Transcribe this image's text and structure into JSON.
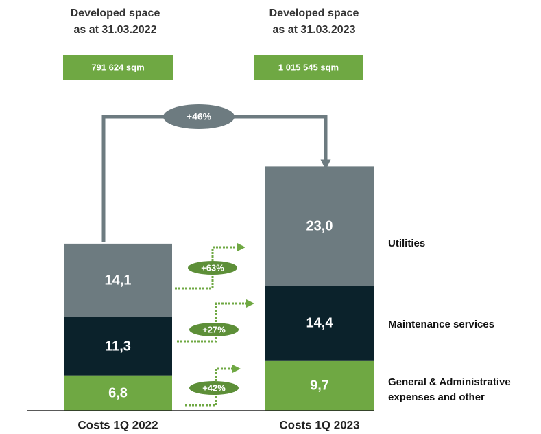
{
  "chart_data": {
    "type": "bar",
    "stacked": true,
    "headers": [
      {
        "lines": [
          "Developed space",
          "as at 31.03.2022"
        ],
        "area": "791 624 sqm"
      },
      {
        "lines": [
          "Developed space",
          "as at 31.03.2023"
        ],
        "area": "1 015 545 sqm"
      }
    ],
    "total_change": "+46%",
    "categories": [
      "Costs 1Q 2022",
      "Costs 1Q 2023"
    ],
    "series": [
      {
        "name": "General & Administrative expenses and other",
        "color": "#6fa843",
        "values": [
          6.8,
          9.7
        ],
        "value_labels": [
          "6,8",
          "9,7"
        ],
        "change": "+42%"
      },
      {
        "name": "Maintenance services",
        "color": "#0b222b",
        "values": [
          11.3,
          14.4
        ],
        "value_labels": [
          "11,3",
          "14,4"
        ],
        "change": "+27%"
      },
      {
        "name": "Utilities",
        "color": "#6d7b80",
        "values": [
          14.1,
          23.0
        ],
        "value_labels": [
          "14,1",
          "23,0"
        ],
        "change": "+63%"
      }
    ]
  }
}
